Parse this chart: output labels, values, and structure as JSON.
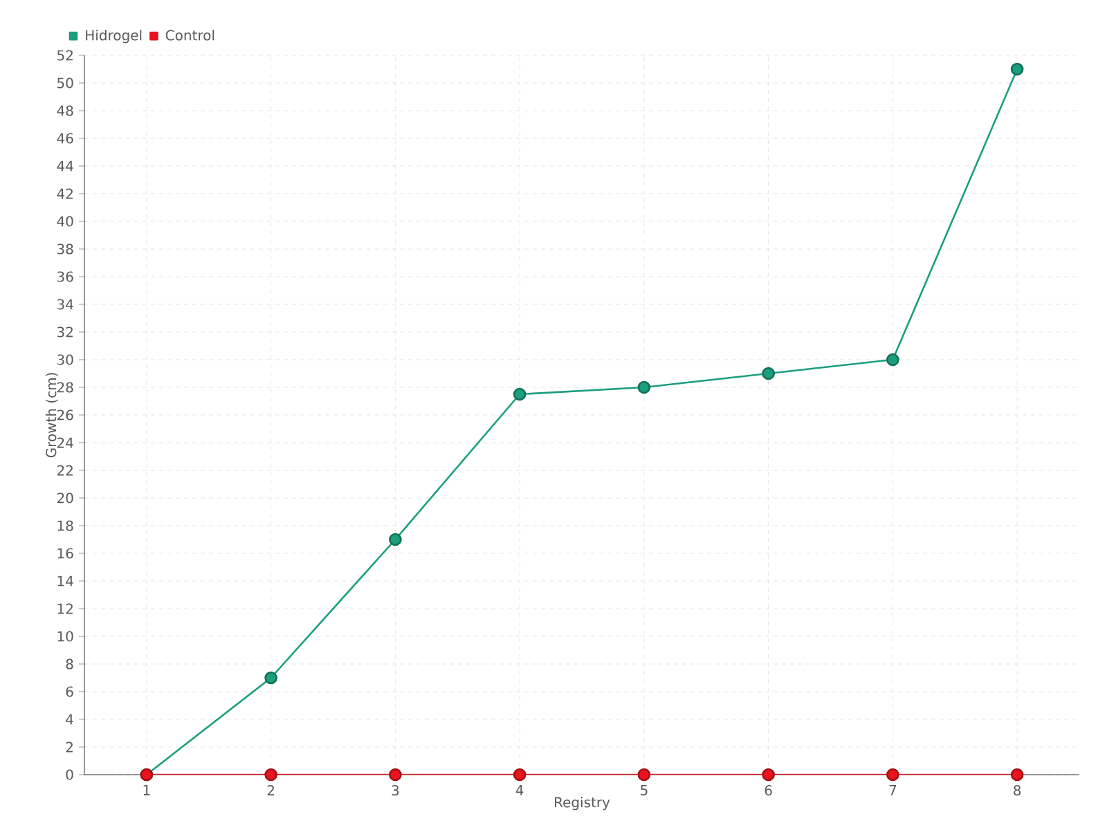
{
  "chart_data": {
    "type": "line",
    "xlabel": "Registry",
    "ylabel": "Growth (cm)",
    "x": [
      1,
      2,
      3,
      4,
      5,
      6,
      7,
      8
    ],
    "series": [
      {
        "name": "Hidrogel",
        "color": "#1a9e7e",
        "values": [
          0,
          7,
          17,
          27.5,
          28,
          29,
          30,
          51
        ]
      },
      {
        "name": "Control",
        "color": "#e8141e",
        "values": [
          0,
          0,
          0,
          0,
          0,
          0,
          0,
          0
        ]
      }
    ],
    "xlim": [
      0.5,
      8.5
    ],
    "xticks": [
      1,
      2,
      3,
      4,
      5,
      6,
      7,
      8
    ],
    "ylim": [
      0,
      52
    ],
    "yticks": [
      0,
      2,
      4,
      6,
      8,
      10,
      12,
      14,
      16,
      18,
      20,
      22,
      24,
      26,
      28,
      30,
      32,
      34,
      36,
      38,
      40,
      42,
      44,
      46,
      48,
      50,
      52
    ],
    "grid": true,
    "legend": "top left",
    "marker": "circle",
    "line_style": "solid"
  }
}
